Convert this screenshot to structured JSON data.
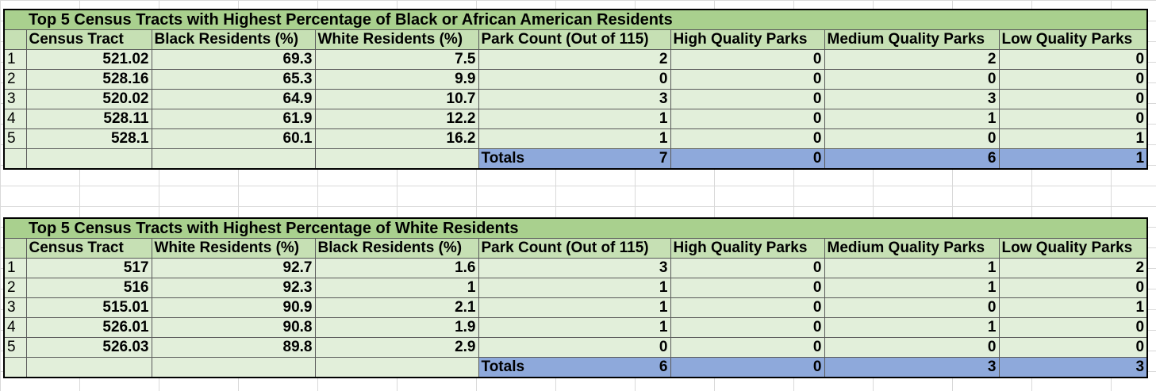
{
  "tables": [
    {
      "title": "Top 5 Census Tracts with Highest Percentage of Black or African American Residents",
      "headers": [
        "Census Tract",
        "Black Residents (%)",
        "White Residents (%)",
        "Park Count (Out of 115)",
        "High Quality Parks",
        "Medium Quality Parks",
        "Low Quality Parks"
      ],
      "rows": [
        {
          "idx": "1",
          "cells": [
            "521.02",
            "69.3",
            "7.5",
            "2",
            "0",
            "2",
            "0"
          ]
        },
        {
          "idx": "2",
          "cells": [
            "528.16",
            "65.3",
            "9.9",
            "0",
            "0",
            "0",
            "0"
          ]
        },
        {
          "idx": "3",
          "cells": [
            "520.02",
            "64.9",
            "10.7",
            "3",
            "0",
            "3",
            "0"
          ]
        },
        {
          "idx": "4",
          "cells": [
            "528.11",
            "61.9",
            "12.2",
            "1",
            "0",
            "1",
            "0"
          ]
        },
        {
          "idx": "5",
          "cells": [
            "528.1",
            "60.1",
            "16.2",
            "1",
            "0",
            "0",
            "1"
          ]
        }
      ],
      "totals": {
        "label": "Totals",
        "park_count": "7",
        "high": "0",
        "medium": "6",
        "low": "1"
      }
    },
    {
      "title": "Top 5 Census Tracts with Highest Percentage of White Residents",
      "headers": [
        "Census Tract",
        "White Residents (%)",
        "Black Residents (%)",
        "Park Count (Out of 115)",
        "High Quality Parks",
        "Medium Quality Parks",
        "Low Quality Parks"
      ],
      "rows": [
        {
          "idx": "1",
          "cells": [
            "517",
            "92.7",
            "1.6",
            "3",
            "0",
            "1",
            "2"
          ]
        },
        {
          "idx": "2",
          "cells": [
            "516",
            "92.3",
            "1",
            "1",
            "0",
            "1",
            "0"
          ]
        },
        {
          "idx": "3",
          "cells": [
            "515.01",
            "90.9",
            "2.1",
            "1",
            "0",
            "0",
            "1"
          ]
        },
        {
          "idx": "4",
          "cells": [
            "526.01",
            "90.8",
            "1.9",
            "1",
            "0",
            "1",
            "0"
          ]
        },
        {
          "idx": "5",
          "cells": [
            "526.03",
            "89.8",
            "2.9",
            "0",
            "0",
            "0",
            "0"
          ]
        }
      ],
      "totals": {
        "label": "Totals",
        "park_count": "6",
        "high": "0",
        "medium": "3",
        "low": "3"
      }
    }
  ]
}
